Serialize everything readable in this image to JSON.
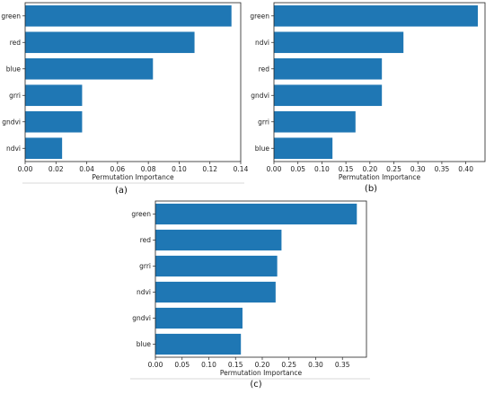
{
  "chart_data": [
    {
      "type": "bar",
      "orientation": "horizontal",
      "panel_label": "(a)",
      "xlabel": "Permutation Importance",
      "categories": [
        "green",
        "red",
        "blue",
        "grri",
        "gndvi",
        "ndvi"
      ],
      "values": [
        0.134,
        0.11,
        0.083,
        0.037,
        0.037,
        0.024
      ],
      "xlim": [
        0,
        0.14
      ],
      "xticks": [
        "0.00",
        "0.02",
        "0.04",
        "0.06",
        "0.08",
        "0.10",
        "0.12",
        "0.14"
      ],
      "bar_color": "#1f77b4"
    },
    {
      "type": "bar",
      "orientation": "horizontal",
      "panel_label": "(b)",
      "xlabel": "Permutation Importance",
      "categories": [
        "green",
        "ndvi",
        "red",
        "gndvi",
        "grri",
        "blue"
      ],
      "values": [
        0.425,
        0.27,
        0.225,
        0.225,
        0.17,
        0.122
      ],
      "xlim": [
        0,
        0.44
      ],
      "xticks": [
        "0.00",
        "0.05",
        "0.10",
        "0.15",
        "0.20",
        "0.25",
        "0.30",
        "0.35",
        "0.40"
      ],
      "bar_color": "#1f77b4"
    },
    {
      "type": "bar",
      "orientation": "horizontal",
      "panel_label": "(c)",
      "xlabel": "Permutation Importance",
      "categories": [
        "green",
        "red",
        "grri",
        "ndvi",
        "gndvi",
        "blue"
      ],
      "values": [
        0.377,
        0.236,
        0.228,
        0.225,
        0.163,
        0.16
      ],
      "xlim": [
        0,
        0.395
      ],
      "xticks": [
        "0.00",
        "0.05",
        "0.10",
        "0.15",
        "0.20",
        "0.25",
        "0.30",
        "0.35"
      ],
      "bar_color": "#1f77b4"
    }
  ]
}
